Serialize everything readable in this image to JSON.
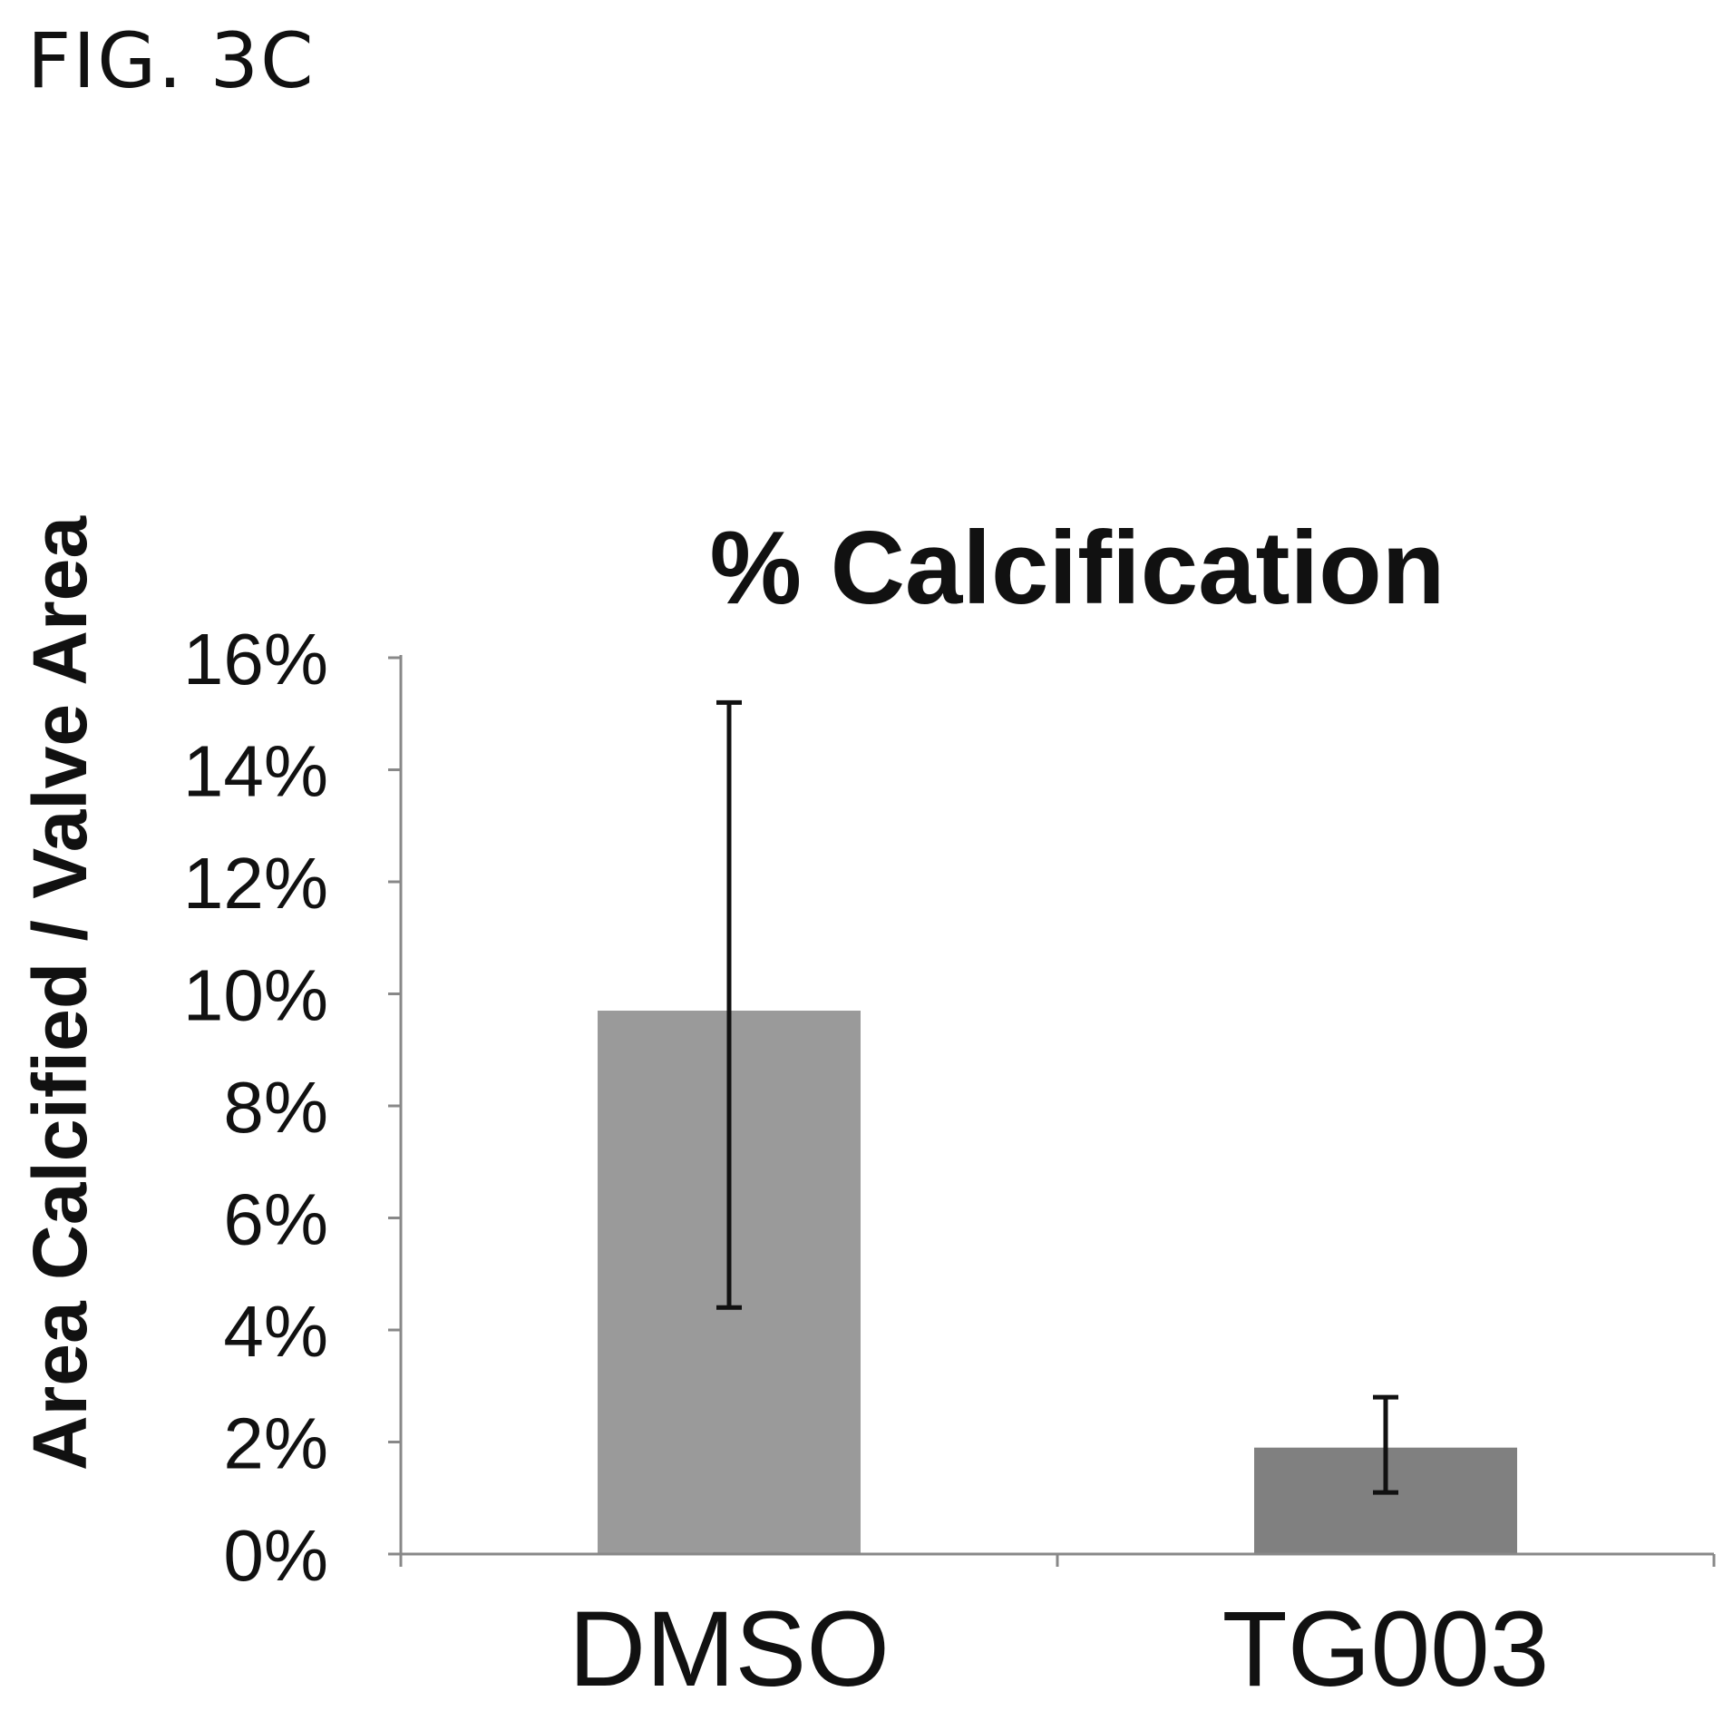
{
  "figure_label": "FIG. 3C",
  "chart_data": {
    "type": "bar",
    "title": "% Calcification",
    "xlabel": "",
    "ylabel": "Area Calcified / Valve Area",
    "categories": [
      "DMSO",
      "TG003"
    ],
    "values": [
      9.7,
      1.9
    ],
    "error_low": [
      4.4,
      1.1
    ],
    "error_high": [
      15.2,
      2.8
    ],
    "ylim": [
      0,
      16
    ],
    "yticks": [
      0,
      2,
      4,
      6,
      8,
      10,
      12,
      14,
      16
    ],
    "ytick_labels": [
      "0%",
      "2%",
      "4%",
      "6%",
      "8%",
      "10%",
      "12%",
      "14%",
      "16%"
    ],
    "bar_colors": [
      "#9a9a9a",
      "#808080"
    ],
    "grid": false,
    "legend": "none"
  }
}
